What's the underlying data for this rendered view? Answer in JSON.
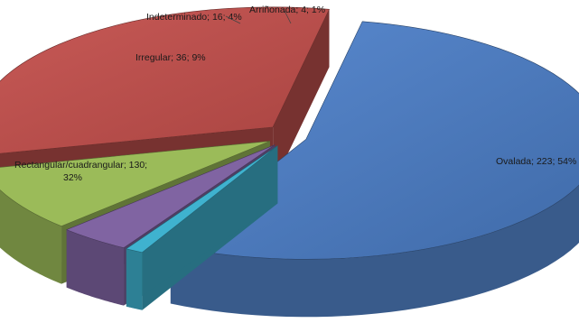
{
  "chart_data": {
    "type": "pie",
    "style": "3d-exploded",
    "slices": [
      {
        "label": "Ovalada; 223; 54%",
        "category": "Ovalada",
        "value": 223,
        "percent": 54,
        "color": "#4f7ec1"
      },
      {
        "label": "Arriñonada; 4; 1%",
        "category": "Arriñonada",
        "value": 4,
        "percent": 1,
        "color": "#3fb2cf"
      },
      {
        "label": "Indeterminado; 16; 4%",
        "category": "Indeterminado",
        "value": 16,
        "percent": 4,
        "color": "#8064a2"
      },
      {
        "label": "Irregular; 36; 9%",
        "category": "Irregular",
        "value": 36,
        "percent": 9,
        "color": "#9bbb59"
      },
      {
        "label_line1": "Rectangular/cuadrangular; 130;",
        "label_line2": "32%",
        "category": "Rectangular/cuadrangular",
        "value": 130,
        "percent": 32,
        "color": "#c0504d"
      }
    ]
  }
}
